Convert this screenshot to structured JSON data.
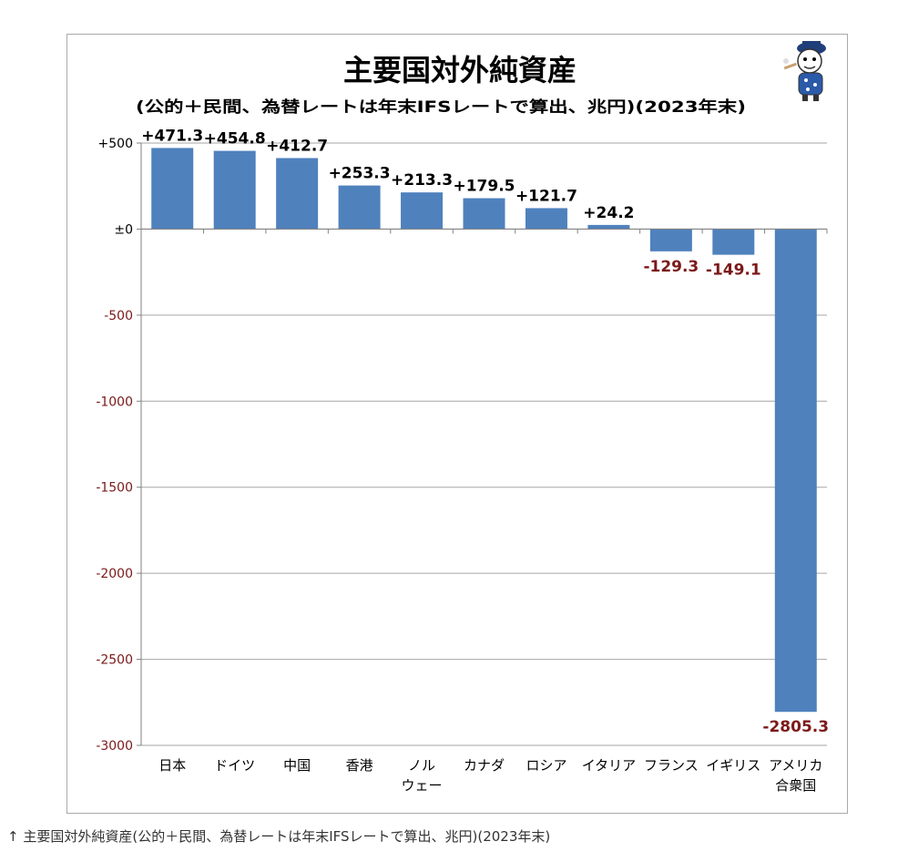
{
  "chart_data": {
    "type": "bar",
    "title": "主要国対外純資産",
    "subtitle": "(公的＋民間、為替レートは年末IFSレートで算出、兆円)(2023年末)",
    "categories": [
      "日本",
      "ドイツ",
      "中国",
      "香港",
      "ノル\nウェー",
      "カナダ",
      "ロシア",
      "イタリア",
      "フランス",
      "イギリス",
      "アメリカ\n合衆国"
    ],
    "values": [
      471.3,
      454.8,
      412.7,
      253.3,
      213.3,
      179.5,
      121.7,
      24.2,
      -129.3,
      -149.1,
      -2805.3
    ],
    "data_labels": [
      "+471.3",
      "+454.8",
      "+412.7",
      "+253.3",
      "+213.3",
      "+179.5",
      "+121.7",
      "+24.2",
      "-129.3",
      "-149.1",
      "-2805.3"
    ],
    "yticks": [
      500,
      0,
      -500,
      -1000,
      -1500,
      -2000,
      -2500,
      -3000
    ],
    "ytick_labels": [
      "+500",
      "±0",
      "-500",
      "-1000",
      "-1500",
      "-2000",
      "-2500",
      "-3000"
    ],
    "ylim": [
      -3000,
      500
    ],
    "grid": true,
    "colors": {
      "bar": "#4f81bd",
      "positive_label": "#000000",
      "negative_label": "#7b1a1a",
      "negative_tick": "#7b1a1a",
      "gridline": "#a6a6a6"
    }
  },
  "caption": "↑ 主要国対外純資産(公的＋民間、為替レートは年末IFSレートで算出、兆円)(2023年末)",
  "mascot_icon": "mascot-character-icon"
}
